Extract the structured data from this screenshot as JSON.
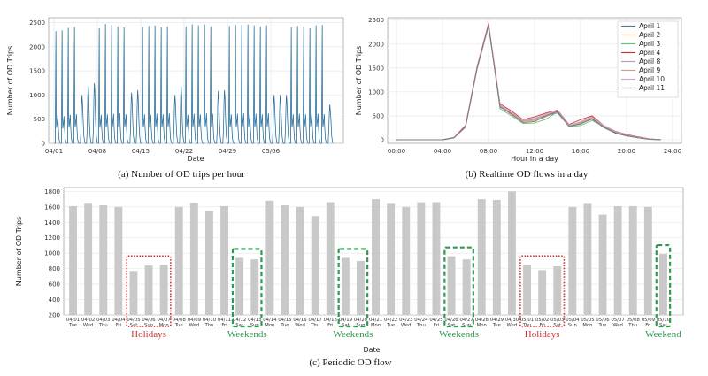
{
  "chart_data": [
    {
      "type": "line",
      "caption": "(a) Number of OD trips per hour",
      "xlabel": "Date",
      "ylabel": "Number of OD Trips",
      "x_ticks": [
        "04/01",
        "04/08",
        "04/15",
        "04/22",
        "04/29",
        "05/06"
      ],
      "y_ticks": [
        0,
        500,
        1000,
        1500,
        2000,
        2500
      ],
      "ylim": [
        0,
        2600
      ],
      "grid": true,
      "series": [
        {
          "daily_peaks": [
            2320,
            2340,
            2390,
            2410,
            1000,
            1200,
            1250,
            2380,
            2470,
            2450,
            2420,
            2400,
            1050,
            1100,
            2410,
            2430,
            2440,
            2400,
            2420,
            1000,
            1200,
            2420,
            2460,
            2440,
            2460,
            2420,
            1080,
            1100,
            2430,
            2450,
            2450,
            2460,
            2440,
            2420,
            2440,
            1000,
            1000,
            1000,
            2400,
            2430,
            2420,
            2380,
            2440,
            2450,
            800
          ],
          "daily_mid_peaks": [
            580,
            560,
            590,
            600,
            600,
            640,
            640,
            590,
            600,
            610,
            620,
            600,
            620,
            640,
            600,
            590,
            610,
            600,
            620,
            600,
            620,
            590,
            610,
            600,
            620,
            610,
            600,
            620,
            600,
            610,
            620,
            600,
            610,
            600,
            620,
            600,
            610,
            620,
            600,
            610,
            600,
            620,
            610,
            600,
            800
          ]
        }
      ]
    },
    {
      "type": "line",
      "caption": "(b) Realtime OD flows in a day",
      "xlabel": "Hour in a day",
      "ylabel": "Number of OD Trips",
      "x_ticks": [
        "00:00",
        "04:00",
        "08:00",
        "12:00",
        "16:00",
        "20:00",
        "24:00"
      ],
      "y_ticks": [
        0,
        500,
        1000,
        1500,
        2000,
        2500
      ],
      "ylim": [
        0,
        2550
      ],
      "grid": true,
      "legend_position": "top-right",
      "hours": [
        0,
        1,
        2,
        3,
        4,
        5,
        6,
        7,
        8,
        9,
        10,
        11,
        12,
        13,
        14,
        15,
        16,
        17,
        18,
        19,
        20,
        21,
        22,
        23
      ],
      "series": [
        {
          "name": "April 1",
          "color": "#4c7f8c",
          "values": [
            0,
            0,
            0,
            0,
            0,
            40,
            260,
            1480,
            2370,
            680,
            560,
            420,
            430,
            500,
            560,
            280,
            340,
            430,
            260,
            140,
            80,
            40,
            10,
            0
          ]
        },
        {
          "name": "April 2",
          "color": "#e8a070",
          "values": [
            0,
            0,
            0,
            0,
            0,
            45,
            280,
            1500,
            2400,
            700,
            520,
            380,
            400,
            480,
            600,
            300,
            380,
            480,
            300,
            170,
            100,
            50,
            15,
            0
          ]
        },
        {
          "name": "April 3",
          "color": "#6cc07a",
          "values": [
            0,
            0,
            0,
            0,
            0,
            40,
            270,
            1490,
            2390,
            650,
            500,
            340,
            350,
            430,
            580,
            270,
            300,
            400,
            280,
            150,
            90,
            40,
            10,
            0
          ]
        },
        {
          "name": "April 4",
          "color": "#c03c3c",
          "values": [
            0,
            0,
            0,
            0,
            0,
            50,
            300,
            1520,
            2430,
            750,
            600,
            420,
            480,
            560,
            620,
            320,
            420,
            500,
            300,
            180,
            110,
            60,
            20,
            0
          ]
        },
        {
          "name": "April 8",
          "color": "#b0a0c8",
          "values": [
            0,
            0,
            0,
            0,
            0,
            40,
            260,
            1470,
            2380,
            720,
            560,
            400,
            440,
            540,
            600,
            300,
            360,
            460,
            290,
            160,
            100,
            50,
            15,
            0
          ]
        },
        {
          "name": "April 9",
          "color": "#c9a090",
          "values": [
            0,
            0,
            0,
            0,
            0,
            42,
            270,
            1480,
            2400,
            700,
            550,
            390,
            420,
            520,
            590,
            290,
            350,
            450,
            280,
            160,
            95,
            45,
            12,
            0
          ]
        },
        {
          "name": "April 10",
          "color": "#e0a0d0",
          "values": [
            0,
            0,
            0,
            0,
            0,
            45,
            280,
            1500,
            2410,
            730,
            570,
            410,
            450,
            540,
            610,
            310,
            370,
            470,
            300,
            170,
            100,
            50,
            15,
            0
          ]
        },
        {
          "name": "April 11",
          "color": "#7a7a7a",
          "values": [
            0,
            0,
            0,
            0,
            0,
            40,
            275,
            1490,
            2400,
            690,
            540,
            360,
            380,
            500,
            590,
            280,
            330,
            440,
            270,
            150,
            90,
            40,
            10,
            0
          ]
        }
      ]
    },
    {
      "type": "bar",
      "caption": "(c) Periodic OD flow",
      "xlabel": "Date",
      "ylabel": "Number of OD Trips",
      "y_ticks": [
        200,
        400,
        600,
        800,
        1000,
        1200,
        1400,
        1600,
        1800
      ],
      "ylim": [
        200,
        1850
      ],
      "grid": true,
      "bar_color": "#c9c9c9",
      "categories": [
        "04/01",
        "04/02",
        "04/03",
        "04/04",
        "04/05",
        "04/06",
        "04/07",
        "04/08",
        "04/09",
        "04/10",
        "04/11",
        "04/12",
        "04/13",
        "04/14",
        "04/15",
        "04/16",
        "04/17",
        "04/18",
        "04/19",
        "04/20",
        "04/21",
        "04/22",
        "04/23",
        "04/24",
        "04/25",
        "04/26",
        "04/27",
        "04/28",
        "04/29",
        "04/30",
        "05/01",
        "05/02",
        "05/03",
        "05/04",
        "05/05",
        "05/06",
        "05/07",
        "05/08",
        "05/09",
        "05/10"
      ],
      "weekdays": [
        "Tue",
        "Wed",
        "Thu",
        "Fri",
        "Sat",
        "Sun",
        "Mon",
        "Tue",
        "Wed",
        "Thu",
        "Fri",
        "Sat",
        "Sun",
        "Mon",
        "Tue",
        "Wed",
        "Thu",
        "Fri",
        "Sat",
        "Sun",
        "Mon",
        "Tue",
        "Wed",
        "Thu",
        "Fri",
        "Sat",
        "Sun",
        "Mon",
        "Tue",
        "Wed",
        "Thu",
        "Fri",
        "Sat",
        "Sun",
        "Mon",
        "Tue",
        "Wed",
        "Thu",
        "Fri",
        "Sat"
      ],
      "values": [
        1610,
        1640,
        1620,
        1600,
        770,
        840,
        850,
        1600,
        1650,
        1550,
        1610,
        940,
        920,
        1680,
        1620,
        1600,
        1480,
        1660,
        940,
        900,
        1700,
        1640,
        1600,
        1660,
        1660,
        960,
        920,
        1700,
        1690,
        1800,
        850,
        780,
        830,
        1600,
        1640,
        1500,
        1610,
        1610,
        1600,
        990
      ],
      "annotations": [
        {
          "label": "Holidays",
          "first": 4,
          "last": 6,
          "color": "#cc3333"
        },
        {
          "label": "Weekends",
          "first": 11,
          "last": 12,
          "color": "#2f9a52"
        },
        {
          "label": "Weekends",
          "first": 18,
          "last": 19,
          "color": "#2f9a52"
        },
        {
          "label": "Weekends",
          "first": 25,
          "last": 26,
          "color": "#2f9a52"
        },
        {
          "label": "Holidays",
          "first": 30,
          "last": 32,
          "color": "#cc3333"
        },
        {
          "label": "Weekend",
          "first": 39,
          "last": 39,
          "color": "#2f9a52"
        }
      ]
    }
  ]
}
